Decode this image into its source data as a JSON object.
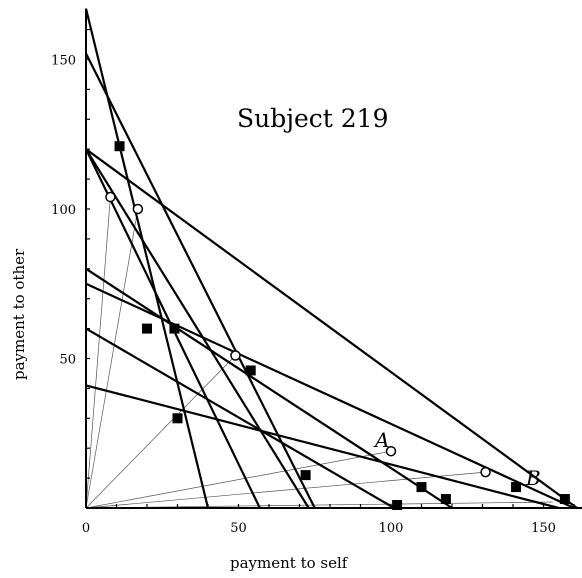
{
  "chart_data": {
    "type": "scatter",
    "title": "Subject 219",
    "xlabel": "payment to self",
    "ylabel": "payment to other",
    "xlim": [
      0,
      165
    ],
    "ylim": [
      0,
      167
    ],
    "x_ticks": [
      0,
      50,
      100,
      150
    ],
    "y_ticks": [
      50,
      100,
      150
    ],
    "budget_lines": [
      {
        "x_intercept": 40,
        "y_intercept": 167
      },
      {
        "x_intercept": 57,
        "y_intercept": 120
      },
      {
        "x_intercept": 75,
        "y_intercept": 152
      },
      {
        "x_intercept": 101,
        "y_intercept": 60
      },
      {
        "x_intercept": 120,
        "y_intercept": 80
      },
      {
        "x_intercept": 155,
        "y_intercept": 41
      },
      {
        "x_intercept": 160,
        "y_intercept": 75
      },
      {
        "x_intercept": 161,
        "y_intercept": 120
      },
      {
        "x_intercept": 73,
        "y_intercept": 120
      }
    ],
    "rays": [
      {
        "x": 8,
        "y": 104
      },
      {
        "x": 17,
        "y": 100
      },
      {
        "x": 49,
        "y": 51
      },
      {
        "x": 100,
        "y": 19
      },
      {
        "x": 131,
        "y": 12
      },
      {
        "x": 153,
        "y": 2
      }
    ],
    "series": [
      {
        "marker": "filled-square",
        "points": [
          [
            11,
            121
          ],
          [
            20,
            60
          ],
          [
            29,
            60
          ],
          [
            30,
            30
          ],
          [
            54,
            46
          ],
          [
            72,
            11
          ],
          [
            102,
            1
          ],
          [
            110,
            7
          ],
          [
            118,
            3
          ],
          [
            141,
            7
          ],
          [
            157,
            3
          ]
        ]
      },
      {
        "marker": "open-circle",
        "points": [
          [
            8,
            104
          ],
          [
            17,
            100
          ],
          [
            49,
            51
          ],
          [
            100,
            19
          ],
          [
            131,
            12
          ]
        ]
      }
    ],
    "annotations": [
      {
        "text": "A",
        "x": 100,
        "y": 19
      },
      {
        "text": "B",
        "x": 141,
        "y": 7
      }
    ]
  }
}
